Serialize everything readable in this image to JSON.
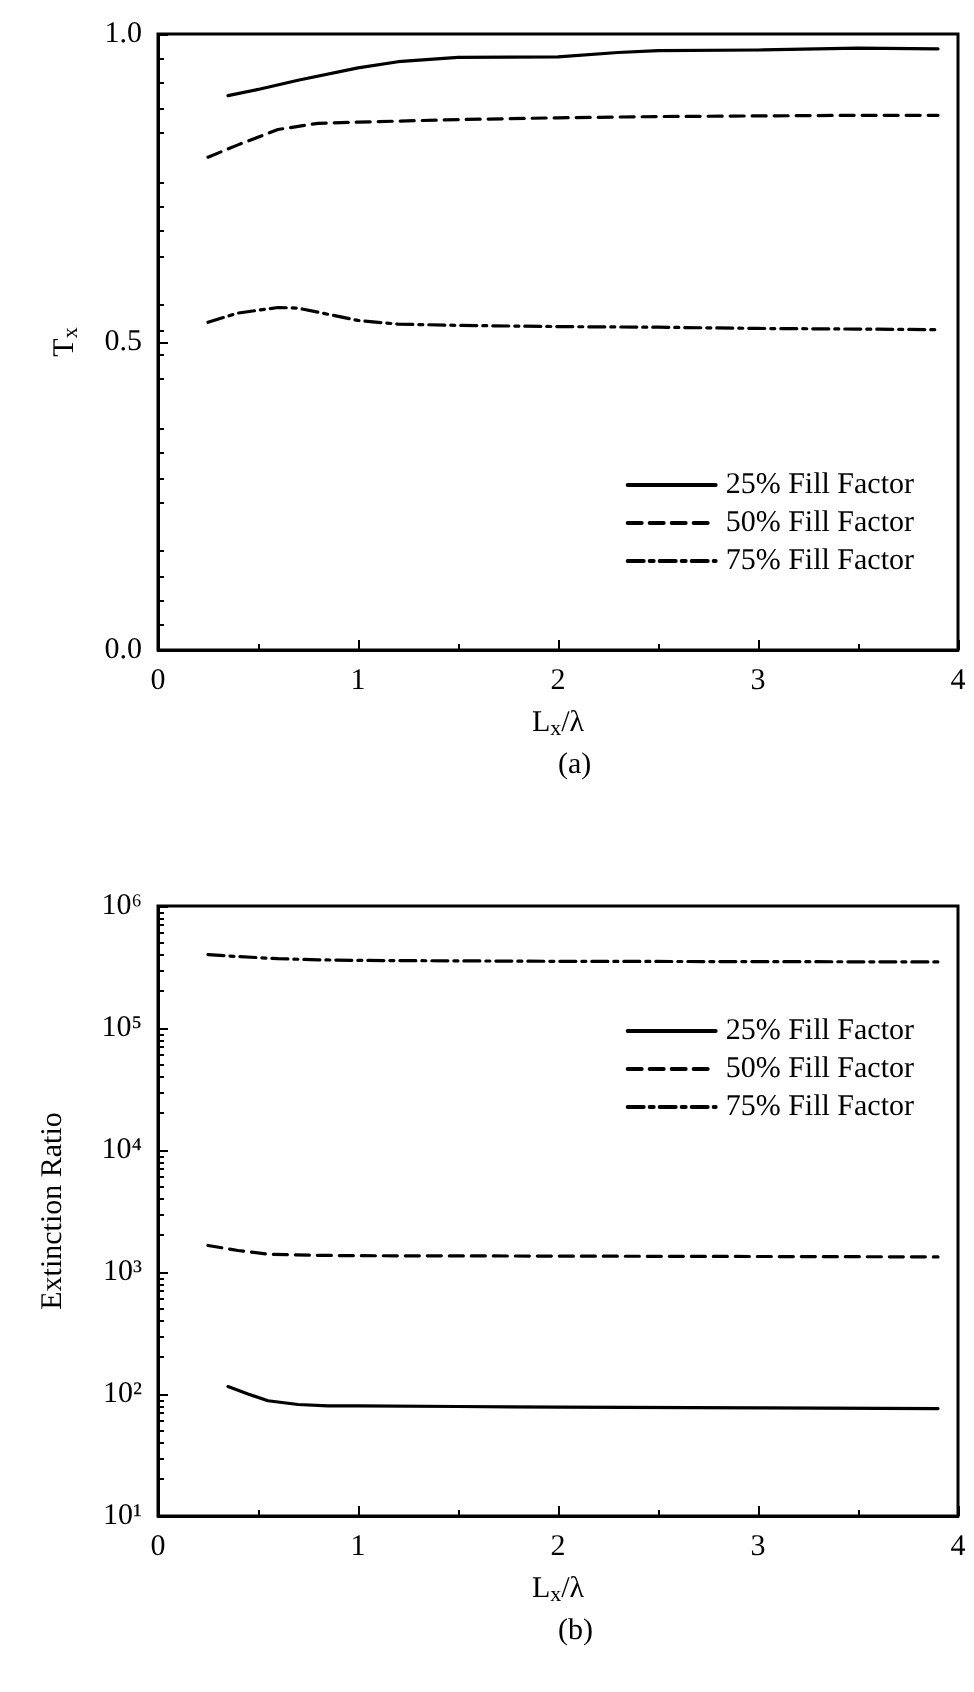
{
  "chart_data": [
    {
      "type": "line",
      "xlabel": "L$_{x}$/λ",
      "ylabel": "T$_{x}$",
      "annotations": [
        "(a)"
      ],
      "xlim": [
        0,
        4
      ],
      "xticks": [
        0,
        1,
        2,
        3,
        4
      ],
      "ylim": [
        0,
        1
      ],
      "yticks": [
        {
          "value": 0,
          "label": "0.0"
        },
        {
          "value": 0.5,
          "label": "0.5"
        },
        {
          "value": 1,
          "label": "1.0"
        }
      ],
      "grid": false,
      "legend": "bottom right",
      "marker": "none",
      "series": [
        {
          "name": "25% Fill Factor",
          "color": "#000000",
          "line_style": "solid",
          "x": [
            0.35,
            0.5,
            0.7,
            1.0,
            1.2,
            1.5,
            2.0,
            2.3,
            2.5,
            3.0,
            3.5,
            3.9
          ],
          "values": [
            0.9,
            0.91,
            0.925,
            0.945,
            0.955,
            0.962,
            0.963,
            0.97,
            0.973,
            0.974,
            0.977,
            0.976
          ]
        },
        {
          "name": "50% Fill Factor",
          "color": "#000000",
          "line_style": "dashed",
          "x": [
            0.25,
            0.4,
            0.6,
            0.8,
            1.0,
            1.5,
            2.0,
            2.5,
            3.0,
            3.5,
            3.9
          ],
          "values": [
            0.8,
            0.82,
            0.845,
            0.855,
            0.857,
            0.861,
            0.864,
            0.866,
            0.867,
            0.868,
            0.868
          ]
        },
        {
          "name": "75% Fill Factor",
          "color": "#000000",
          "line_style": "dashdot",
          "x": [
            0.25,
            0.4,
            0.6,
            0.7,
            0.85,
            1.0,
            1.2,
            1.5,
            2.0,
            2.5,
            3.0,
            3.5,
            3.9
          ],
          "values": [
            0.532,
            0.547,
            0.556,
            0.555,
            0.545,
            0.535,
            0.529,
            0.527,
            0.525,
            0.524,
            0.522,
            0.521,
            0.52
          ]
        }
      ]
    },
    {
      "type": "line",
      "xlabel": "L$_{x}$/λ",
      "ylabel": "Extinction Ratio",
      "annotations": [
        "(b)"
      ],
      "log": "y",
      "xlim": [
        0,
        4
      ],
      "xticks": [
        0,
        1,
        2,
        3,
        4
      ],
      "ylim": [
        10,
        1000000
      ],
      "yticks": [
        {
          "value": 10,
          "label": "10¹"
        },
        {
          "value": 100,
          "label": "10²"
        },
        {
          "value": 1000,
          "label": "10³"
        },
        {
          "value": 10000,
          "label": "10⁴"
        },
        {
          "value": 100000,
          "label": "10⁵"
        },
        {
          "value": 1000000,
          "label": "10⁶"
        }
      ],
      "grid": false,
      "legend": "top right",
      "marker": "none",
      "series": [
        {
          "name": "25% Fill Factor",
          "color": "#000000",
          "line_style": "solid",
          "x": [
            0.35,
            0.45,
            0.55,
            0.7,
            0.85,
            1.0,
            1.5,
            2.0,
            3.0,
            3.9
          ],
          "values": [
            115,
            100,
            88,
            82,
            80,
            80,
            79,
            78,
            77,
            76
          ]
        },
        {
          "name": "50% Fill Factor",
          "color": "#000000",
          "line_style": "dashed",
          "x": [
            0.25,
            0.4,
            0.55,
            0.8,
            1.0,
            2.0,
            3.0,
            3.9
          ],
          "values": [
            1650,
            1500,
            1400,
            1370,
            1360,
            1350,
            1340,
            1330
          ]
        },
        {
          "name": "75% Fill Factor",
          "color": "#000000",
          "line_style": "dashdot",
          "x": [
            0.25,
            0.4,
            0.6,
            0.8,
            1.0,
            1.5,
            2.0,
            3.0,
            3.9
          ],
          "values": [
            400000,
            385000,
            370000,
            362000,
            358000,
            355000,
            352000,
            350000,
            348000
          ]
        }
      ]
    }
  ]
}
